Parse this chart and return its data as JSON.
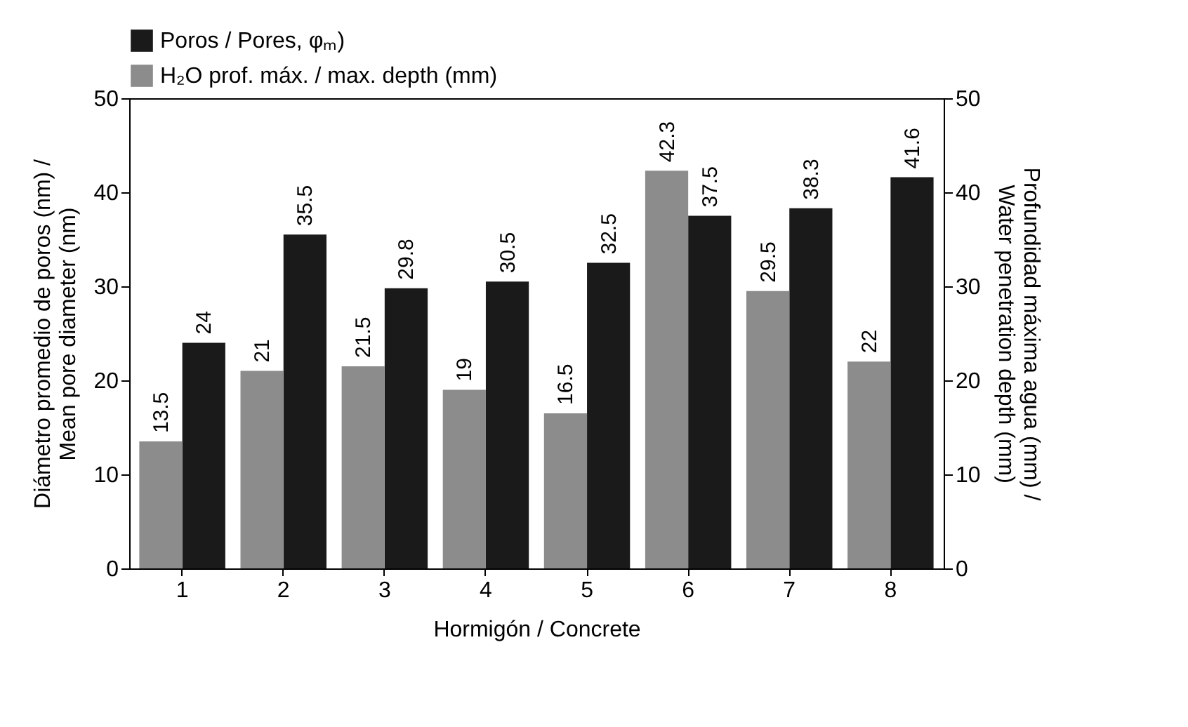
{
  "chart_data": {
    "type": "bar",
    "xlabel": "Hormigón / Concrete",
    "ylabel": "Diámetro promedio de poros (nm) / Mean pore diameter (nm)",
    "y2label": "Profundidad máxima agua (mm) / Water penetration depth (mm)",
    "categories": [
      "1",
      "2",
      "3",
      "4",
      "5",
      "6",
      "7",
      "8"
    ],
    "series": [
      {
        "name": "Poros / Pores, φₘ)",
        "color": "#1a1a1a",
        "values": [
          24,
          35.5,
          29.8,
          30.5,
          32.5,
          37.5,
          38.3,
          41.6
        ]
      },
      {
        "name": "H₂O prof. máx. / max. depth (mm)",
        "color": "#8c8c8c",
        "axis": "y2",
        "values": [
          13.5,
          21,
          21.5,
          19,
          16.5,
          42.3,
          29.5,
          22
        ]
      }
    ],
    "ylim": [
      0,
      50
    ],
    "yticks": [
      0,
      10,
      20,
      30,
      40,
      50
    ],
    "y2lim": [
      0,
      50
    ],
    "y2ticks": [
      0,
      10,
      20,
      30,
      40,
      50
    ],
    "data_labels": true,
    "grid": false,
    "legend": "top left"
  }
}
